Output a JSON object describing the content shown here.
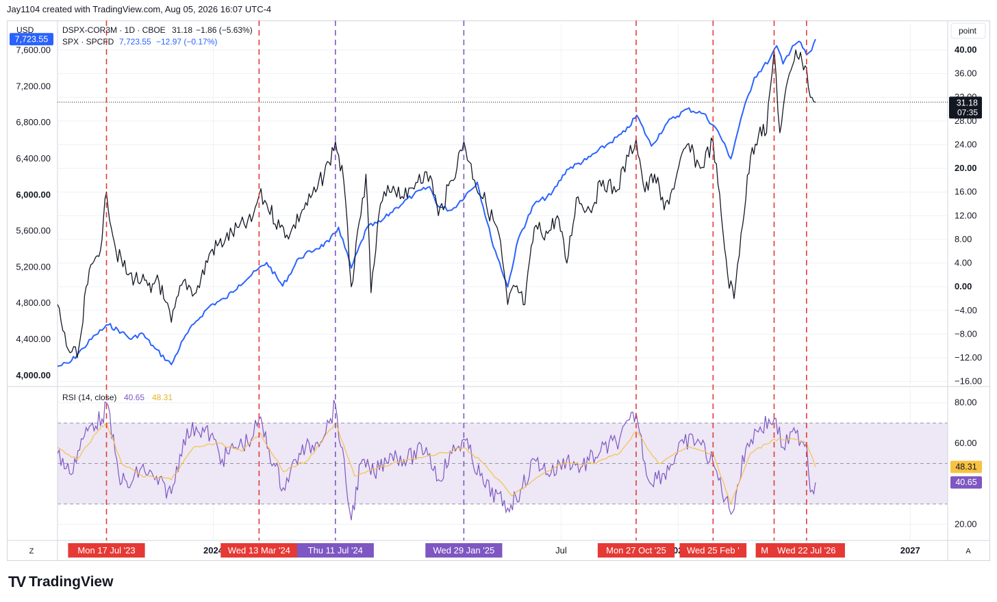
{
  "header": {
    "text": "Jay1104 created with TradingView.com, Aug 05, 2026 16:07 UTC-4"
  },
  "footer": {
    "logo_text": "TradingView",
    "logo_mark": "TV"
  },
  "chart_data": {
    "type": "line",
    "currency_label": "USD",
    "right_unit_label": "point",
    "legend": {
      "dspx": {
        "label": "DSPX-COR3M · 1D · CBOE",
        "value": "31.18",
        "change": "−1.86 (−5.63%)",
        "color": "#131722"
      },
      "spx": {
        "label": "SPX · SPCFD",
        "value": "7,723.55",
        "change": "−12.97 (−0.17%)",
        "color": "#2962ff"
      }
    },
    "left_axis": {
      "series": "SPX",
      "range": [
        3900,
        7900
      ],
      "ticks": [
        {
          "v": 4000,
          "label": "4,000.00",
          "bold": true
        },
        {
          "v": 4400,
          "label": "4,400.00"
        },
        {
          "v": 4800,
          "label": "4,800.00"
        },
        {
          "v": 5200,
          "label": "5,200.00"
        },
        {
          "v": 5600,
          "label": "5,600.00"
        },
        {
          "v": 6000,
          "label": "6,000.00",
          "bold": true
        },
        {
          "v": 6400,
          "label": "6,400.00"
        },
        {
          "v": 6800,
          "label": "6,800.00"
        },
        {
          "v": 7200,
          "label": "7,200.00"
        },
        {
          "v": 7600,
          "label": "7,600.00"
        }
      ],
      "last_badge": "7,723.55"
    },
    "right_axis": {
      "series": "DSPX-COR3M",
      "range": [
        -16.5,
        44.5
      ],
      "ticks": [
        {
          "v": -16,
          "label": "−16.00"
        },
        {
          "v": -12,
          "label": "−12.00"
        },
        {
          "v": -8,
          "label": "−8.00"
        },
        {
          "v": -4,
          "label": "−4.00"
        },
        {
          "v": 0,
          "label": "0.00",
          "bold": true
        },
        {
          "v": 4,
          "label": "4.00"
        },
        {
          "v": 8,
          "label": "8.00"
        },
        {
          "v": 12,
          "label": "12.00"
        },
        {
          "v": 16,
          "label": "16.00"
        },
        {
          "v": 20,
          "label": "20.00",
          "bold": true
        },
        {
          "v": 24,
          "label": "24.00"
        },
        {
          "v": 28,
          "label": "28.00"
        },
        {
          "v": 32,
          "label": "32.00"
        },
        {
          "v": 36,
          "label": "36.00"
        },
        {
          "v": 40,
          "label": "40.00",
          "bold": true
        }
      ],
      "last_badge_value": "31.18",
      "last_badge_time": "07:35",
      "last_value": 31.18
    },
    "x_axis": {
      "start": "2023-05-01",
      "end": "2027-03-01",
      "tick_labels": [
        {
          "date": "2024-01-01",
          "label": "2024"
        },
        {
          "date": "2025-07-01",
          "label": "Jul"
        },
        {
          "date": "2026-01-01",
          "label": "2026"
        },
        {
          "date": "2027-01-01",
          "label": "2027"
        }
      ],
      "left_corner": "Z",
      "right_corner": "A"
    },
    "markers": [
      {
        "date": "2023-07-17",
        "label": "Mon 17 Jul '23",
        "color": "#e53935"
      },
      {
        "date": "2024-03-13",
        "label": "Wed 13 Mar '24",
        "color": "#e53935"
      },
      {
        "date": "2024-07-11",
        "label": "Thu 11 Jul '24",
        "color": "#7e57c2"
      },
      {
        "date": "2025-01-29",
        "label": "Wed 29 Jan '25",
        "color": "#7e57c2"
      },
      {
        "date": "2025-10-27",
        "label": "Mon 27 Oct '25",
        "color": "#e53935"
      },
      {
        "date": "2026-02-25",
        "label": "Wed 25 Feb '",
        "color": "#e53935"
      },
      {
        "date": "2026-06-01",
        "label": "Mon 0'",
        "color": "#e53935"
      },
      {
        "date": "2026-07-22",
        "label": "Wed 22 Jul '26",
        "color": "#e53935"
      }
    ],
    "series": [
      {
        "name": "SPX · SPCFD",
        "axis": "left",
        "color": "#2962ff",
        "points": [
          [
            "2023-05-01",
            4100
          ],
          [
            "2023-05-20",
            4140
          ],
          [
            "2023-06-10",
            4300
          ],
          [
            "2023-06-30",
            4450
          ],
          [
            "2023-07-20",
            4560
          ],
          [
            "2023-08-10",
            4480
          ],
          [
            "2023-08-25",
            4400
          ],
          [
            "2023-09-10",
            4470
          ],
          [
            "2023-10-01",
            4300
          ],
          [
            "2023-10-27",
            4120
          ],
          [
            "2023-11-15",
            4400
          ],
          [
            "2023-12-05",
            4600
          ],
          [
            "2023-12-28",
            4780
          ],
          [
            "2024-01-20",
            4850
          ],
          [
            "2024-02-10",
            5000
          ],
          [
            "2024-03-01",
            5110
          ],
          [
            "2024-03-25",
            5250
          ],
          [
            "2024-04-19",
            4990
          ],
          [
            "2024-05-15",
            5300
          ],
          [
            "2024-06-10",
            5400
          ],
          [
            "2024-07-01",
            5480
          ],
          [
            "2024-07-16",
            5640
          ],
          [
            "2024-08-05",
            5190
          ],
          [
            "2024-08-30",
            5640
          ],
          [
            "2024-09-20",
            5700
          ],
          [
            "2024-10-15",
            5860
          ],
          [
            "2024-11-11",
            6000
          ],
          [
            "2024-12-06",
            6090
          ],
          [
            "2024-12-20",
            5870
          ],
          [
            "2025-01-10",
            5830
          ],
          [
            "2025-02-19",
            6140
          ],
          [
            "2025-03-13",
            5520
          ],
          [
            "2025-04-08",
            4980
          ],
          [
            "2025-04-25",
            5520
          ],
          [
            "2025-05-20",
            5900
          ],
          [
            "2025-06-15",
            6000
          ],
          [
            "2025-07-10",
            6280
          ],
          [
            "2025-08-10",
            6390
          ],
          [
            "2025-09-10",
            6550
          ],
          [
            "2025-10-10",
            6700
          ],
          [
            "2025-10-28",
            6880
          ],
          [
            "2025-11-20",
            6540
          ],
          [
            "2025-12-15",
            6800
          ],
          [
            "2026-01-15",
            6950
          ],
          [
            "2026-02-10",
            6900
          ],
          [
            "2026-03-05",
            6700
          ],
          [
            "2026-03-25",
            6400
          ],
          [
            "2026-04-10",
            6850
          ],
          [
            "2026-05-01",
            7300
          ],
          [
            "2026-05-25",
            7500
          ],
          [
            "2026-06-05",
            7650
          ],
          [
            "2026-06-15",
            7450
          ],
          [
            "2026-06-30",
            7650
          ],
          [
            "2026-07-10",
            7700
          ],
          [
            "2026-07-22",
            7550
          ],
          [
            "2026-07-30",
            7600
          ],
          [
            "2026-08-05",
            7723.55
          ]
        ]
      },
      {
        "name": "DSPX-COR3M · 1D · CBOE",
        "axis": "right",
        "color": "#131722",
        "points": [
          [
            "2023-05-01",
            -3
          ],
          [
            "2023-05-15",
            -10
          ],
          [
            "2023-06-01",
            -12
          ],
          [
            "2023-06-10",
            -6
          ],
          [
            "2023-06-15",
            0
          ],
          [
            "2023-06-30",
            5
          ],
          [
            "2023-07-10",
            8
          ],
          [
            "2023-07-17",
            16
          ],
          [
            "2023-08-01",
            6
          ],
          [
            "2023-08-20",
            2
          ],
          [
            "2023-09-10",
            1
          ],
          [
            "2023-09-25",
            -1
          ],
          [
            "2023-10-05",
            2
          ],
          [
            "2023-10-15",
            -2
          ],
          [
            "2023-10-27",
            -6
          ],
          [
            "2023-11-15",
            1
          ],
          [
            "2023-12-05",
            -1
          ],
          [
            "2023-12-28",
            6
          ],
          [
            "2024-01-20",
            8
          ],
          [
            "2024-02-10",
            10
          ],
          [
            "2024-03-01",
            11
          ],
          [
            "2024-03-13",
            15.5
          ],
          [
            "2024-03-25",
            14
          ],
          [
            "2024-04-15",
            10
          ],
          [
            "2024-05-01",
            9
          ],
          [
            "2024-05-20",
            13
          ],
          [
            "2024-06-10",
            16
          ],
          [
            "2024-07-01",
            21
          ],
          [
            "2024-07-11",
            24.5
          ],
          [
            "2024-07-24",
            18
          ],
          [
            "2024-08-05",
            0
          ],
          [
            "2024-08-20",
            12
          ],
          [
            "2024-08-28",
            19
          ],
          [
            "2024-09-05",
            -1
          ],
          [
            "2024-09-20",
            14
          ],
          [
            "2024-10-10",
            17
          ],
          [
            "2024-11-01",
            15
          ],
          [
            "2024-11-20",
            19
          ],
          [
            "2024-12-10",
            18
          ],
          [
            "2024-12-20",
            12
          ],
          [
            "2025-01-10",
            18
          ],
          [
            "2025-01-29",
            24.5
          ],
          [
            "2025-02-15",
            18
          ],
          [
            "2025-03-05",
            14
          ],
          [
            "2025-03-25",
            9
          ],
          [
            "2025-04-08",
            -3
          ],
          [
            "2025-04-20",
            0
          ],
          [
            "2025-05-05",
            -3
          ],
          [
            "2025-05-20",
            10
          ],
          [
            "2025-06-10",
            9
          ],
          [
            "2025-06-25",
            12
          ],
          [
            "2025-07-10",
            4
          ],
          [
            "2025-07-25",
            15
          ],
          [
            "2025-08-15",
            13
          ],
          [
            "2025-09-05",
            18
          ],
          [
            "2025-09-25",
            16
          ],
          [
            "2025-10-15",
            22
          ],
          [
            "2025-10-27",
            25
          ],
          [
            "2025-11-10",
            16
          ],
          [
            "2025-11-25",
            19
          ],
          [
            "2025-12-10",
            13
          ],
          [
            "2025-12-28",
            18
          ],
          [
            "2026-01-15",
            24
          ],
          [
            "2026-02-05",
            20
          ],
          [
            "2026-02-25",
            24.5
          ],
          [
            "2026-03-10",
            12
          ],
          [
            "2026-03-20",
            2
          ],
          [
            "2026-03-30",
            -2
          ],
          [
            "2026-04-10",
            9
          ],
          [
            "2026-04-25",
            22
          ],
          [
            "2026-05-10",
            27
          ],
          [
            "2026-05-20",
            26
          ],
          [
            "2026-06-01",
            40
          ],
          [
            "2026-06-10",
            26
          ],
          [
            "2026-06-25",
            36
          ],
          [
            "2026-07-05",
            40
          ],
          [
            "2026-07-15",
            38
          ],
          [
            "2026-07-22",
            37
          ],
          [
            "2026-07-28",
            32
          ],
          [
            "2026-08-05",
            31.18
          ]
        ]
      }
    ],
    "rsi": {
      "label": "RSI (14, close)",
      "value": "40.65",
      "ma_value": "48.31",
      "value_num": 40.65,
      "ma_value_num": 48.31,
      "color": "#7e57c2",
      "ma_color": "#f7c244",
      "band_color": "#ede7f6",
      "range": [
        12,
        87
      ],
      "bands": [
        30,
        50,
        70
      ],
      "ticks": [
        {
          "v": 20,
          "label": "20.00"
        },
        {
          "v": 60,
          "label": "60.00"
        },
        {
          "v": 80,
          "label": "80.00"
        }
      ],
      "points": [
        [
          "2023-05-01",
          55
        ],
        [
          "2023-05-20",
          45
        ],
        [
          "2023-06-10",
          62
        ],
        [
          "2023-06-25",
          70
        ],
        [
          "2023-07-10",
          72
        ],
        [
          "2023-07-17",
          80
        ],
        [
          "2023-08-05",
          45
        ],
        [
          "2023-08-20",
          38
        ],
        [
          "2023-09-10",
          48
        ],
        [
          "2023-10-01",
          42
        ],
        [
          "2023-10-27",
          35
        ],
        [
          "2023-11-15",
          62
        ],
        [
          "2023-12-05",
          68
        ],
        [
          "2023-12-28",
          64
        ],
        [
          "2024-01-15",
          52
        ],
        [
          "2024-02-05",
          58
        ],
        [
          "2024-03-01",
          62
        ],
        [
          "2024-03-13",
          72
        ],
        [
          "2024-04-05",
          50
        ],
        [
          "2024-04-20",
          38
        ],
        [
          "2024-05-15",
          55
        ],
        [
          "2024-06-10",
          60
        ],
        [
          "2024-07-01",
          70
        ],
        [
          "2024-07-11",
          79
        ],
        [
          "2024-08-05",
          22
        ],
        [
          "2024-08-20",
          50
        ],
        [
          "2024-09-10",
          45
        ],
        [
          "2024-10-05",
          55
        ],
        [
          "2024-11-01",
          52
        ],
        [
          "2024-12-01",
          58
        ],
        [
          "2024-12-20",
          42
        ],
        [
          "2025-01-10",
          55
        ],
        [
          "2025-01-29",
          62
        ],
        [
          "2025-03-01",
          40
        ],
        [
          "2025-04-08",
          28
        ],
        [
          "2025-05-01",
          38
        ],
        [
          "2025-05-20",
          52
        ],
        [
          "2025-06-15",
          45
        ],
        [
          "2025-07-10",
          52
        ],
        [
          "2025-08-01",
          48
        ],
        [
          "2025-09-01",
          56
        ],
        [
          "2025-10-01",
          62
        ],
        [
          "2025-10-27",
          75
        ],
        [
          "2025-11-15",
          42
        ],
        [
          "2025-12-10",
          45
        ],
        [
          "2026-01-10",
          60
        ],
        [
          "2026-02-01",
          62
        ],
        [
          "2026-02-25",
          50
        ],
        [
          "2026-03-25",
          25
        ],
        [
          "2026-04-20",
          60
        ],
        [
          "2026-05-10",
          68
        ],
        [
          "2026-06-01",
          72
        ],
        [
          "2026-06-15",
          58
        ],
        [
          "2026-07-05",
          65
        ],
        [
          "2026-07-22",
          60
        ],
        [
          "2026-07-28",
          36
        ],
        [
          "2026-08-05",
          40.65
        ]
      ],
      "ma_points": [
        [
          "2023-05-01",
          58
        ],
        [
          "2023-06-01",
          52
        ],
        [
          "2023-07-01",
          65
        ],
        [
          "2023-07-17",
          70
        ],
        [
          "2023-08-10",
          50
        ],
        [
          "2023-09-10",
          44
        ],
        [
          "2023-10-27",
          42
        ],
        [
          "2023-12-01",
          58
        ],
        [
          "2024-01-10",
          60
        ],
        [
          "2024-02-15",
          56
        ],
        [
          "2024-03-15",
          65
        ],
        [
          "2024-04-20",
          46
        ],
        [
          "2024-05-30",
          52
        ],
        [
          "2024-07-11",
          70
        ],
        [
          "2024-08-10",
          44
        ],
        [
          "2024-09-20",
          48
        ],
        [
          "2024-11-01",
          52
        ],
        [
          "2024-12-15",
          54
        ],
        [
          "2025-01-29",
          58
        ],
        [
          "2025-03-01",
          50
        ],
        [
          "2025-04-15",
          34
        ],
        [
          "2025-05-20",
          42
        ],
        [
          "2025-07-01",
          50
        ],
        [
          "2025-08-20",
          50
        ],
        [
          "2025-10-01",
          55
        ],
        [
          "2025-10-27",
          66
        ],
        [
          "2025-12-01",
          50
        ],
        [
          "2026-01-15",
          58
        ],
        [
          "2026-02-25",
          55
        ],
        [
          "2026-03-25",
          30
        ],
        [
          "2026-04-25",
          55
        ],
        [
          "2026-06-01",
          62
        ],
        [
          "2026-07-05",
          62
        ],
        [
          "2026-07-22",
          60
        ],
        [
          "2026-08-05",
          48.31
        ]
      ]
    }
  }
}
